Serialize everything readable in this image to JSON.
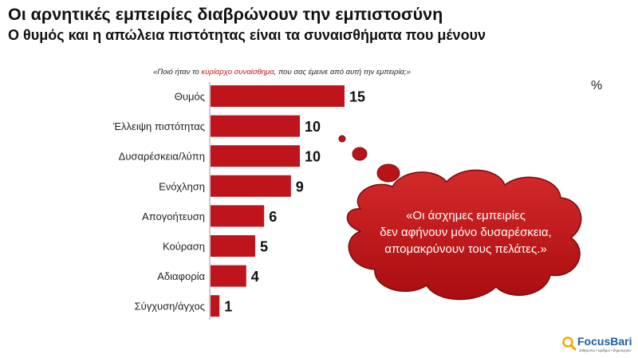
{
  "header": {
    "title": "Οι αρνητικές εμπειρίες διαβρώνουν την εμπιστοσύνη",
    "subtitle": "Ο θυμός και η απώλεια πιστότητας είναι τα συναισθήματα που μένουν"
  },
  "question": {
    "prefix": "«Ποιό ήταν το ",
    "highlight": "κυρίαρχο συναίσθημα",
    "suffix": ", που σας έμεινε από αυτή την εμπειρία;»"
  },
  "unit_label": "%",
  "callout": {
    "lines": [
      "«Οι άσχημες εμπειρίες",
      "δεν αφήνουν μόνο δυσαρέσκεια,",
      "απομακρύνουν τους πελάτες.»"
    ]
  },
  "logo": {
    "brand": "FocusBari",
    "tagline": "άνθρωποι ▪ αριθμοί ▪ δημιουργία"
  },
  "colors": {
    "bar": "#c0141c",
    "accent": "#c0141c",
    "brand": "#1c5ea8"
  },
  "chart_data": {
    "type": "bar",
    "orientation": "horizontal",
    "categories": [
      "Θυμός",
      "Έλλειψη πιστότητας",
      "Δυσαρέσκεια/λύπη",
      "Ενόχληση",
      "Απογοήτευση",
      "Κούραση",
      "Αδιαφορία",
      "Σύγχυση/άγχος"
    ],
    "values": [
      15,
      10,
      10,
      9,
      6,
      5,
      4,
      1
    ],
    "unit": "%",
    "title": "",
    "xlabel": "",
    "ylabel": "",
    "grid": false,
    "legend": "none"
  }
}
